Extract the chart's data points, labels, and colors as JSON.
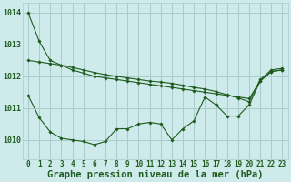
{
  "title": "Graphe pression niveau de la mer (hPa)",
  "bg_color": "#ceeaea",
  "grid_color": "#aacccc",
  "line_color": "#1e5c1e",
  "x_labels": [
    "0",
    "1",
    "2",
    "3",
    "4",
    "5",
    "6",
    "7",
    "8",
    "9",
    "10",
    "11",
    "12",
    "13",
    "14",
    "15",
    "16",
    "17",
    "18",
    "19",
    "20",
    "21",
    "22",
    "23"
  ],
  "ylim": [
    1009.4,
    1014.3
  ],
  "yticks": [
    1010,
    1011,
    1012,
    1013,
    1014
  ],
  "series": [
    [
      1014.0,
      1013.1,
      1012.5,
      1012.35,
      1012.2,
      1012.1,
      1012.0,
      1011.95,
      1011.9,
      1011.85,
      1011.8,
      1011.75,
      1011.7,
      1011.65,
      1011.6,
      1011.55,
      1011.5,
      1011.45,
      1011.4,
      1011.35,
      1011.3,
      1011.85,
      1012.15,
      1012.2
    ],
    [
      1012.5,
      1012.45,
      1012.4,
      1012.35,
      1012.28,
      1012.2,
      1012.12,
      1012.05,
      1012.0,
      1011.95,
      1011.9,
      1011.85,
      1011.82,
      1011.78,
      1011.72,
      1011.65,
      1011.6,
      1011.52,
      1011.42,
      1011.32,
      1011.2,
      1011.9,
      1012.2,
      1012.25
    ],
    [
      1011.4,
      1010.7,
      1010.25,
      1010.05,
      1010.0,
      1009.95,
      1009.85,
      1009.95,
      1010.35,
      1010.35,
      1010.5,
      1010.55,
      1010.5,
      1010.0,
      1010.35,
      1010.6,
      1011.35,
      1011.1,
      1010.75,
      1010.75,
      1011.1,
      1011.85,
      1012.15,
      1012.2
    ]
  ],
  "xlabel_fontsize": 5.5,
  "ylabel_fontsize": 6,
  "title_fontsize": 7.5
}
